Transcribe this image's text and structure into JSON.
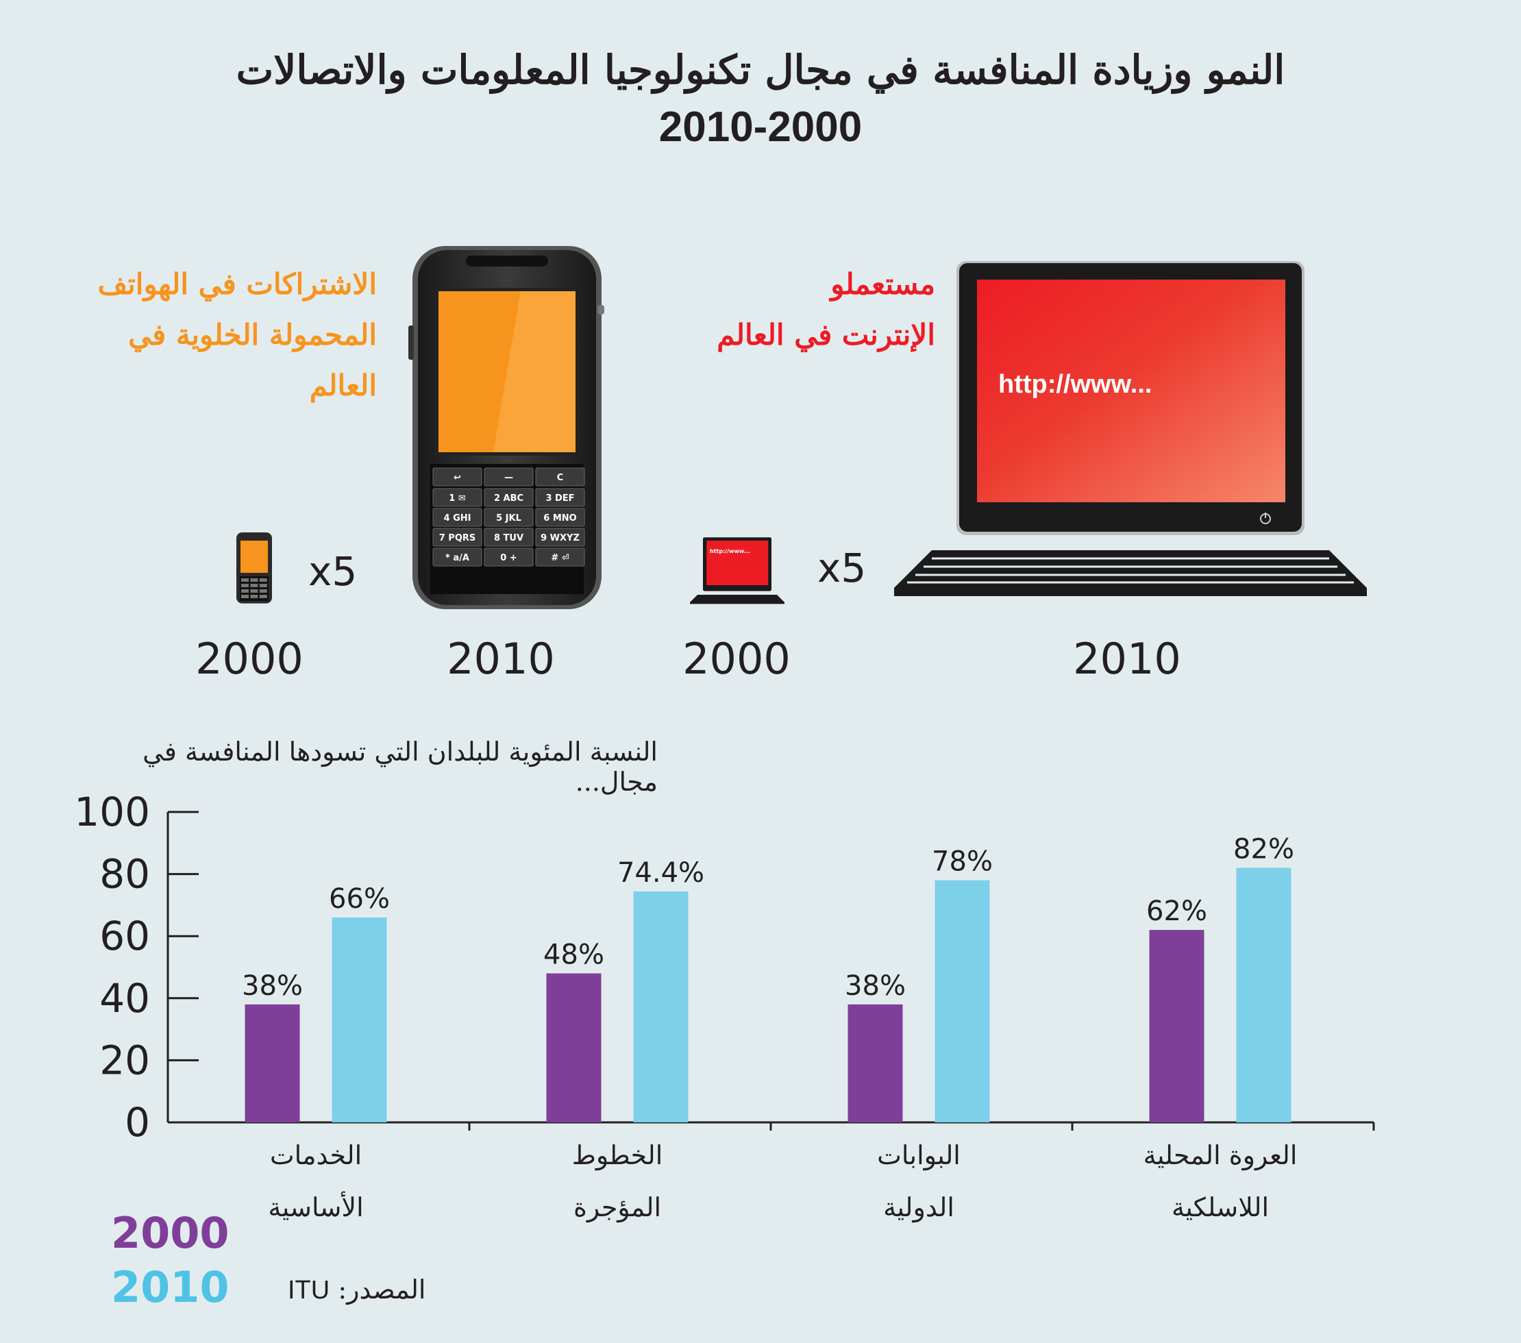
{
  "header": {
    "title": "النمو وزيادة المنافسة في مجال تكنولوجيا المعلومات والاتصالات",
    "years": "2010-2000"
  },
  "mobile": {
    "label_line1": "الاشتراكات في الهواتف",
    "label_line2": "المحمولة الخلوية في العالم",
    "multiplier": "x5",
    "year_small": "2000",
    "year_large": "2010",
    "color": "#f7941d"
  },
  "internet": {
    "label_line1": "مستعملو",
    "label_line2": "الإنترنت في العالم",
    "multiplier": "x5",
    "year_small": "2000",
    "year_large": "2010",
    "screen_text": "http://www...",
    "color": "#ed1c24"
  },
  "phone_keys": [
    [
      "↩",
      "—",
      "C"
    ],
    [
      "1 ✉",
      "2 ABC",
      "3 DEF"
    ],
    [
      "4 GHI",
      "5 JKL",
      "6 MNO"
    ],
    [
      "7 PQRS",
      "8 TUV",
      "9 WXYZ"
    ],
    [
      "* a/A",
      "0 +",
      "# ⏎"
    ]
  ],
  "chart_caption": "النسبة المئوية للبلدان التي تسودها المنافسة في مجال...",
  "chart_data": {
    "type": "bar",
    "categories": [
      [
        "الخدمات",
        "الأساسية"
      ],
      [
        "الخطوط",
        "المؤجرة"
      ],
      [
        "البوابات",
        "الدولية"
      ],
      [
        "العروة المحلية",
        "اللاسلكية"
      ]
    ],
    "series": [
      {
        "name": "2000",
        "values": [
          38,
          48,
          38,
          62
        ],
        "labels": [
          "38%",
          "48%",
          "38%",
          "62%"
        ],
        "color": "#7f3f98"
      },
      {
        "name": "2010",
        "values": [
          66,
          74.4,
          78,
          82
        ],
        "labels": [
          "66%",
          "74.4%",
          "78%",
          "82%"
        ],
        "color": "#7dd0ea"
      }
    ],
    "ylim": [
      0,
      100
    ],
    "yticks": [
      0,
      20,
      40,
      60,
      80,
      100
    ]
  },
  "legend": {
    "y2000": "2000",
    "y2010": "2010",
    "color2000": "#7f3f98",
    "color2010": "#4fc3e6"
  },
  "source": {
    "label": "المصدر:",
    "value": "ITU"
  }
}
